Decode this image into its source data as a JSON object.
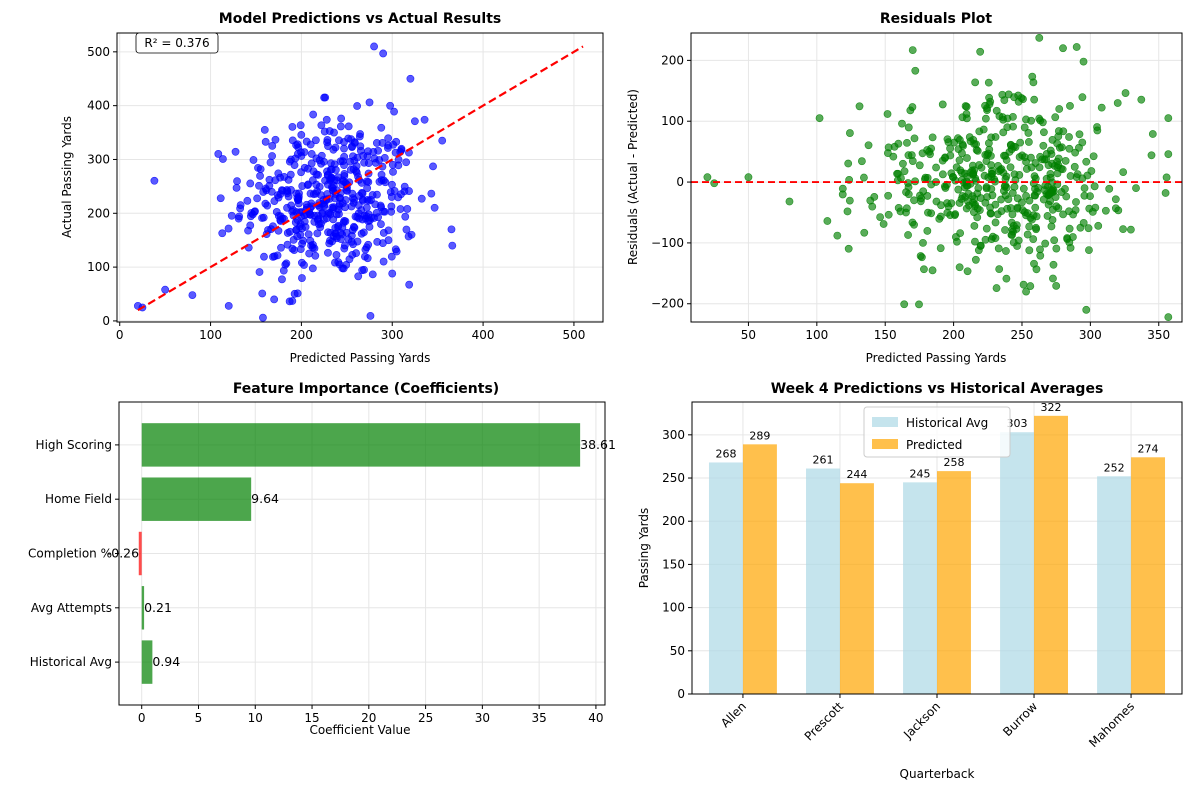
{
  "chart_data": [
    {
      "type": "scatter",
      "title": "Model Predictions vs Actual Results",
      "xlabel": "Predicted Passing Yards",
      "ylabel": "Actual Passing Yards",
      "xlim": [
        -3,
        532
      ],
      "ylim": [
        -2,
        535
      ],
      "xticks": [
        0,
        100,
        200,
        300,
        400,
        500
      ],
      "yticks": [
        0,
        100,
        200,
        300,
        400,
        500
      ],
      "grid": true,
      "point_color": "#0000ff",
      "n_points": 500,
      "center": [
        232,
        225
      ],
      "spread": [
        48,
        75
      ],
      "sample_points": [
        [
          20,
          28
        ],
        [
          25,
          25
        ],
        [
          50,
          58
        ],
        [
          80,
          48
        ],
        [
          120,
          28
        ],
        [
          170,
          40
        ],
        [
          190,
          37
        ],
        [
          280,
          510
        ],
        [
          290,
          497
        ],
        [
          320,
          450
        ],
        [
          355,
          335
        ],
        [
          300,
          88
        ],
        [
          225,
          415
        ]
      ],
      "diagonal_line": {
        "from": [
          20,
          20
        ],
        "to": [
          510,
          510
        ],
        "color": "#ff0000",
        "style": "dashed"
      },
      "annotation": "R² = 0.376"
    },
    {
      "type": "scatter",
      "title": "Residuals Plot",
      "xlabel": "Predicted Passing Yards",
      "ylabel": "Residuals (Actual - Predicted)",
      "xlim": [
        8,
        367
      ],
      "ylim": [
        -230,
        245
      ],
      "xticks": [
        50,
        100,
        150,
        200,
        250,
        300,
        350
      ],
      "yticks": [
        -200,
        -100,
        0,
        100,
        200
      ],
      "grid": true,
      "point_color": "#008000",
      "n_points": 500,
      "center": [
        232,
        0
      ],
      "spread": [
        48,
        70
      ],
      "sample_points": [
        [
          20,
          8
        ],
        [
          25,
          -2
        ],
        [
          50,
          8
        ],
        [
          80,
          -32
        ],
        [
          102,
          105
        ],
        [
          115,
          -88
        ],
        [
          172,
          183
        ],
        [
          280,
          220
        ],
        [
          290,
          222
        ],
        [
          295,
          198
        ],
        [
          297,
          -210
        ],
        [
          253,
          -180
        ],
        [
          355,
          -18
        ],
        [
          320,
          130
        ]
      ],
      "zero_line": {
        "y": 0,
        "color": "#ff0000",
        "style": "dashed"
      }
    },
    {
      "type": "bar",
      "orientation": "horizontal",
      "title": "Feature Importance (Coefficients)",
      "xlabel": "Coefficient Value",
      "xlim": [
        -2,
        40.8
      ],
      "xticks": [
        0,
        5,
        10,
        15,
        20,
        25,
        30,
        35,
        40
      ],
      "grid": true,
      "categories": [
        "Historical Avg",
        "Avg Attempts",
        "Completion %",
        "Home Field",
        "High Scoring"
      ],
      "values": [
        0.94,
        0.21,
        -0.26,
        9.64,
        38.61
      ],
      "labels": [
        "0.94",
        "0.21",
        "-0.26",
        "9.64",
        "38.61"
      ],
      "positive_color": "#008000",
      "negative_color": "#ff0000"
    },
    {
      "type": "bar",
      "title": "Week 4 Predictions vs Historical Averages",
      "xlabel": "Quarterback",
      "ylabel": "Passing Yards",
      "ylim": [
        0,
        338
      ],
      "yticks": [
        0,
        50,
        100,
        150,
        200,
        250,
        300
      ],
      "grid": true,
      "categories": [
        "Allen",
        "Prescott",
        "Jackson",
        "Burrow",
        "Mahomes"
      ],
      "series": [
        {
          "name": "Historical Avg",
          "values": [
            268,
            261,
            245,
            303,
            252
          ],
          "labels": [
            "268",
            "261",
            "245",
            "303",
            "252"
          ],
          "color": "#add8e6"
        },
        {
          "name": "Predicted",
          "values": [
            289,
            244,
            258,
            322,
            274
          ],
          "labels": [
            "289",
            "244",
            "258",
            "322",
            "274"
          ],
          "color": "#ffa500"
        }
      ],
      "legend_position": "top-center"
    }
  ]
}
